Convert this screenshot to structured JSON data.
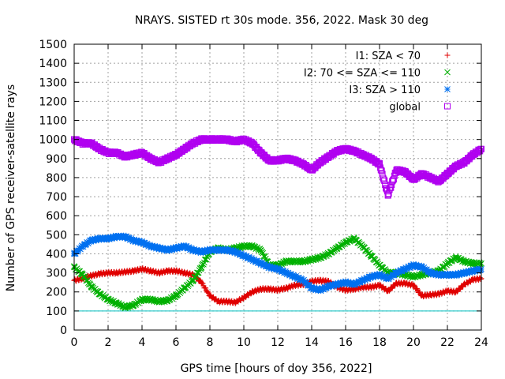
{
  "chart_data": {
    "type": "scatter",
    "title": "NRAYS. SISTED rt 30s mode. 356, 2022. Mask 30 deg",
    "xlabel": "GPS time [hours of doy 356, 2022]",
    "ylabel": "Number of GPS receiver-satellite rays",
    "xlim": [
      0,
      24
    ],
    "ylim": [
      0,
      1500
    ],
    "xticks": [
      0,
      2,
      4,
      6,
      8,
      10,
      12,
      14,
      16,
      18,
      20,
      22,
      24
    ],
    "yticks": [
      0,
      100,
      200,
      300,
      400,
      500,
      600,
      700,
      800,
      900,
      1000,
      1100,
      1200,
      1300,
      1400,
      1500
    ],
    "grid": true,
    "legend_position": "top-right",
    "threshold_line": {
      "y": 100,
      "color": "#00c0c0"
    },
    "series": [
      {
        "name": "I1: SZA < 70",
        "marker": "+",
        "color": "#e00000",
        "x": [
          0,
          0.5,
          1,
          1.5,
          2,
          2.5,
          3,
          3.5,
          4,
          4.5,
          5,
          5.5,
          6,
          6.5,
          7,
          7.5,
          8,
          8.5,
          9,
          9.5,
          10,
          10.5,
          11,
          11.5,
          12,
          12.5,
          13,
          13.5,
          14,
          14.5,
          15,
          15.5,
          16,
          16.5,
          17,
          17.5,
          18,
          18.5,
          19,
          19.5,
          20,
          20.5,
          21,
          21.5,
          22,
          22.5,
          23,
          23.5,
          24
        ],
        "y": [
          260,
          270,
          285,
          295,
          300,
          300,
          305,
          310,
          320,
          310,
          300,
          310,
          310,
          300,
          290,
          250,
          180,
          150,
          150,
          145,
          170,
          200,
          215,
          215,
          210,
          220,
          235,
          240,
          255,
          260,
          255,
          225,
          210,
          215,
          225,
          225,
          235,
          205,
          245,
          245,
          235,
          180,
          185,
          190,
          205,
          200,
          240,
          265,
          270
        ]
      },
      {
        "name": "I2: 70 <= SZA <= 110",
        "marker": "x",
        "color": "#00b000",
        "x": [
          0,
          0.5,
          1,
          1.5,
          2,
          2.5,
          3,
          3.5,
          4,
          4.5,
          5,
          5.5,
          6,
          6.5,
          7,
          7.5,
          8,
          8.5,
          9,
          9.5,
          10,
          10.5,
          11,
          11.5,
          12,
          12.5,
          13,
          13.5,
          14,
          14.5,
          15,
          15.5,
          16,
          16.5,
          17,
          17.5,
          18,
          18.5,
          19,
          19.5,
          20,
          20.5,
          21,
          21.5,
          22,
          22.5,
          23,
          23.5,
          24
        ],
        "y": [
          330,
          290,
          230,
          190,
          160,
          140,
          120,
          130,
          160,
          160,
          150,
          155,
          180,
          220,
          260,
          330,
          410,
          430,
          420,
          430,
          440,
          440,
          420,
          340,
          340,
          360,
          360,
          360,
          370,
          380,
          400,
          430,
          460,
          480,
          440,
          390,
          340,
          300,
          300,
          290,
          280,
          290,
          300,
          310,
          350,
          380,
          360,
          350,
          350
        ]
      },
      {
        "name": "I3: SZA > 110",
        "marker": "*",
        "color": "#0070f0",
        "x": [
          0,
          0.5,
          1,
          1.5,
          2,
          2.5,
          3,
          3.5,
          4,
          4.5,
          5,
          5.5,
          6,
          6.5,
          7,
          7.5,
          8,
          8.5,
          9,
          9.5,
          10,
          10.5,
          11,
          11.5,
          12,
          12.5,
          13,
          13.5,
          14,
          14.5,
          15,
          15.5,
          16,
          16.5,
          17,
          17.5,
          18,
          18.5,
          19,
          19.5,
          20,
          20.5,
          21,
          21.5,
          22,
          22.5,
          23,
          23.5,
          24
        ],
        "y": [
          400,
          440,
          470,
          480,
          480,
          490,
          490,
          470,
          460,
          440,
          430,
          420,
          430,
          440,
          420,
          410,
          420,
          420,
          420,
          410,
          390,
          370,
          350,
          330,
          320,
          300,
          280,
          260,
          220,
          210,
          230,
          240,
          250,
          240,
          260,
          280,
          290,
          270,
          300,
          320,
          340,
          330,
          300,
          290,
          290,
          290,
          300,
          310,
          320
        ]
      },
      {
        "name": "global",
        "marker": "square",
        "color": "#b000f0",
        "x": [
          0,
          0.5,
          1,
          1.5,
          2,
          2.5,
          3,
          3.5,
          4,
          4.5,
          5,
          5.5,
          6,
          6.5,
          7,
          7.5,
          8,
          8.5,
          9,
          9.5,
          10,
          10.5,
          11,
          11.5,
          12,
          12.5,
          13,
          13.5,
          14,
          14.5,
          15,
          15.5,
          16,
          16.5,
          17,
          17.5,
          18,
          18.5,
          19,
          19.5,
          20,
          20.5,
          21,
          21.5,
          22,
          22.5,
          23,
          23.5,
          24
        ],
        "y": [
          1000,
          980,
          980,
          950,
          930,
          930,
          910,
          920,
          930,
          900,
          880,
          900,
          920,
          950,
          980,
          1000,
          1000,
          1000,
          1000,
          990,
          1000,
          980,
          930,
          890,
          890,
          900,
          890,
          870,
          840,
          880,
          910,
          940,
          950,
          940,
          920,
          900,
          870,
          710,
          840,
          830,
          790,
          820,
          800,
          780,
          820,
          860,
          880,
          920,
          950
        ]
      }
    ]
  }
}
